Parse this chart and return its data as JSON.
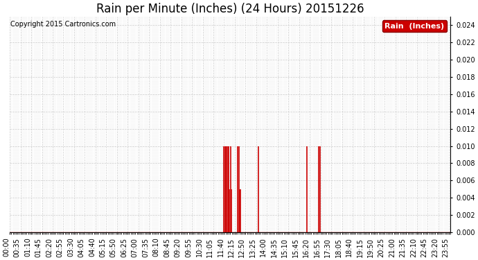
{
  "title": "Rain per Minute (Inches) (24 Hours) 20151226",
  "copyright_text": "Copyright 2015 Cartronics.com",
  "legend_label": "Rain  (Inches)",
  "legend_bg": "#cc0000",
  "legend_text_color": "#ffffff",
  "background_color": "#ffffff",
  "plot_bg_color": "#ffffff",
  "line_color": "#cc0000",
  "baseline_color": "#cc0000",
  "grid_color": "#cccccc",
  "ylim": [
    0.0,
    0.025
  ],
  "yticks": [
    0.0,
    0.002,
    0.004,
    0.006,
    0.008,
    0.01,
    0.012,
    0.014,
    0.016,
    0.018,
    0.02,
    0.022,
    0.024
  ],
  "total_minutes": 1440,
  "rain_events": [
    {
      "minute": 700,
      "value": 0.01
    },
    {
      "minute": 703,
      "value": 0.01
    },
    {
      "minute": 706,
      "value": 0.01
    },
    {
      "minute": 709,
      "value": 0.01
    },
    {
      "minute": 712,
      "value": 0.01
    },
    {
      "minute": 715,
      "value": 0.01
    },
    {
      "minute": 718,
      "value": 0.005
    },
    {
      "minute": 721,
      "value": 0.01
    },
    {
      "minute": 724,
      "value": 0.005
    },
    {
      "minute": 745,
      "value": 0.01
    },
    {
      "minute": 748,
      "value": 0.01
    },
    {
      "minute": 751,
      "value": 0.005
    },
    {
      "minute": 754,
      "value": 0.005
    },
    {
      "minute": 811,
      "value": 0.01
    },
    {
      "minute": 970,
      "value": 0.01
    },
    {
      "minute": 1010,
      "value": 0.01
    },
    {
      "minute": 1013,
      "value": 0.01
    }
  ],
  "title_fontsize": 12,
  "axis_fontsize": 7,
  "copyright_fontsize": 7,
  "tick_label_rotation": 90,
  "tick_interval": 35
}
